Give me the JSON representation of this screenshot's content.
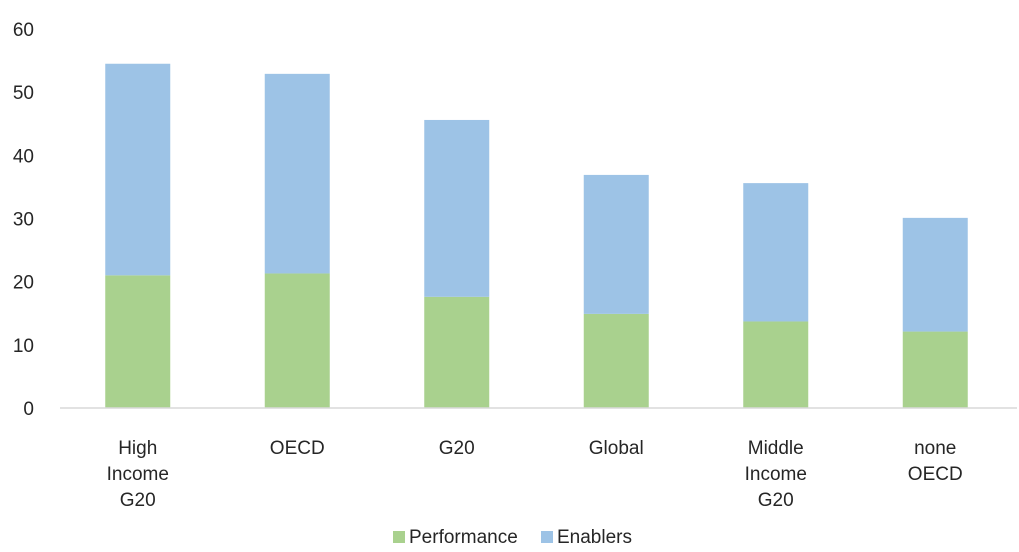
{
  "chart_data": {
    "type": "bar",
    "stacked": true,
    "title": "",
    "xlabel": "",
    "ylabel": "",
    "ylim": [
      0,
      60
    ],
    "yticks": [
      "0",
      "10",
      "20",
      "30",
      "40",
      "50",
      "60"
    ],
    "grid": false,
    "legend_position": "bottom",
    "categories": [
      [
        "High",
        "Income",
        "G20"
      ],
      [
        "OECD"
      ],
      [
        "G20"
      ],
      [
        "Global"
      ],
      [
        "Middle",
        "Income",
        "G20"
      ],
      [
        "none",
        "OECD"
      ]
    ],
    "series": [
      {
        "name": "Performance",
        "color": "#a9d18e",
        "values": [
          21.0,
          21.3,
          17.6,
          14.9,
          13.7,
          12.1
        ]
      },
      {
        "name": "Enablers",
        "color": "#9dc3e6",
        "values": [
          33.5,
          31.6,
          28.0,
          22.0,
          21.9,
          18.0
        ]
      }
    ]
  }
}
